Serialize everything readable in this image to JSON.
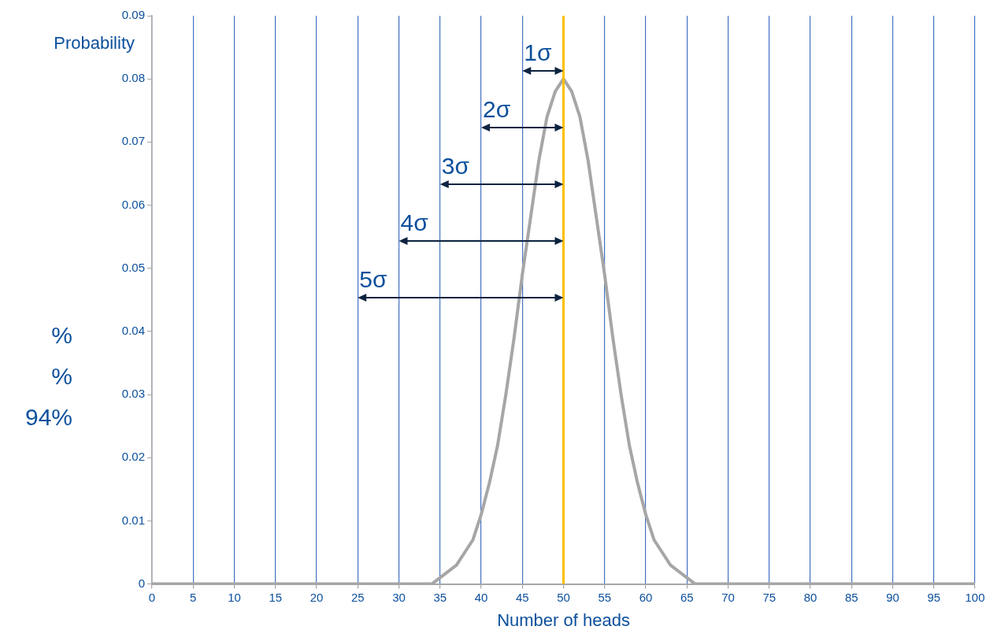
{
  "chart_data": {
    "type": "line",
    "xlabel": "Number of heads",
    "ylabel": "Probability",
    "x": [
      0,
      30,
      32,
      33,
      34,
      35,
      36,
      37,
      38,
      39,
      40,
      41,
      42,
      43,
      44,
      45,
      46,
      47,
      48,
      49,
      50,
      51,
      52,
      53,
      54,
      55,
      56,
      57,
      58,
      59,
      60,
      61,
      62,
      63,
      64,
      65,
      66,
      67,
      68,
      70,
      100
    ],
    "series": [
      {
        "color": "#a6a6a6",
        "values": [
          0,
          0,
          0,
          0,
          0,
          0.001,
          0.002,
          0.003,
          0.005,
          0.007,
          0.011,
          0.016,
          0.022,
          0.03,
          0.039,
          0.049,
          0.058,
          0.067,
          0.074,
          0.078,
          0.08,
          0.078,
          0.074,
          0.067,
          0.058,
          0.049,
          0.039,
          0.03,
          0.022,
          0.016,
          0.011,
          0.007,
          0.005,
          0.003,
          0.002,
          0.001,
          0,
          0,
          0,
          0,
          0
        ]
      }
    ],
    "xlim": [
      0,
      100
    ],
    "xticks": [
      0,
      5,
      10,
      15,
      20,
      25,
      30,
      35,
      40,
      45,
      50,
      55,
      60,
      65,
      70,
      75,
      80,
      85,
      90,
      95,
      100
    ],
    "ylim": [
      0,
      0.09
    ],
    "yticks": [
      0,
      0.01,
      0.02,
      0.03,
      0.04,
      0.05,
      0.06,
      0.07,
      0.08,
      0.09
    ],
    "grid": "x",
    "marker": "none",
    "legend": false,
    "ref_lines": [
      {
        "axis": "x",
        "value": 50,
        "color": "#ffc000"
      }
    ],
    "annotations": [
      "1σ",
      "2σ",
      "3σ",
      "4σ",
      "5σ",
      "%",
      "%",
      "94%"
    ]
  }
}
